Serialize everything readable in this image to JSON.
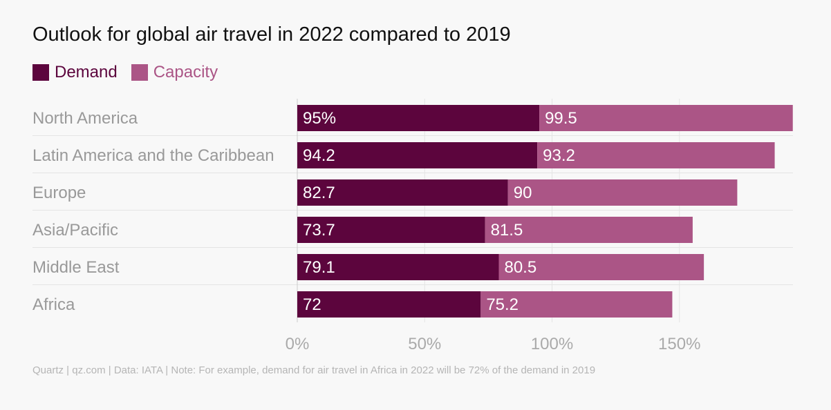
{
  "chart_data": {
    "type": "bar",
    "orientation": "horizontal",
    "stacked": true,
    "title": "Outlook for global air travel in 2022 compared to 2019",
    "categories": [
      "North America",
      "Latin America and the Caribbean",
      "Europe",
      "Asia/Pacific",
      "Middle East",
      "Africa"
    ],
    "series": [
      {
        "name": "Demand",
        "color": "#5c053d",
        "values": [
          95,
          94.2,
          82.7,
          73.7,
          79.1,
          72
        ],
        "labels": [
          "95%",
          "94.2",
          "82.7",
          "73.7",
          "79.1",
          "72"
        ]
      },
      {
        "name": "Capacity",
        "color": "#ab5586",
        "values": [
          99.5,
          93.2,
          90,
          81.5,
          80.5,
          75.2
        ],
        "labels": [
          "99.5",
          "93.2",
          "90",
          "81.5",
          "80.5",
          "75.2"
        ]
      }
    ],
    "xlim": [
      0,
      200
    ],
    "xticks": [
      0,
      50,
      100,
      150
    ],
    "xtick_labels": [
      "0%",
      "50%",
      "100%",
      "150%"
    ],
    "grid": true,
    "legend_position": "top-left"
  },
  "footer": "Quartz | qz.com | Data: IATA | Note: For example, demand for air travel in Africa in 2022 will be 72% of the demand in 2019"
}
